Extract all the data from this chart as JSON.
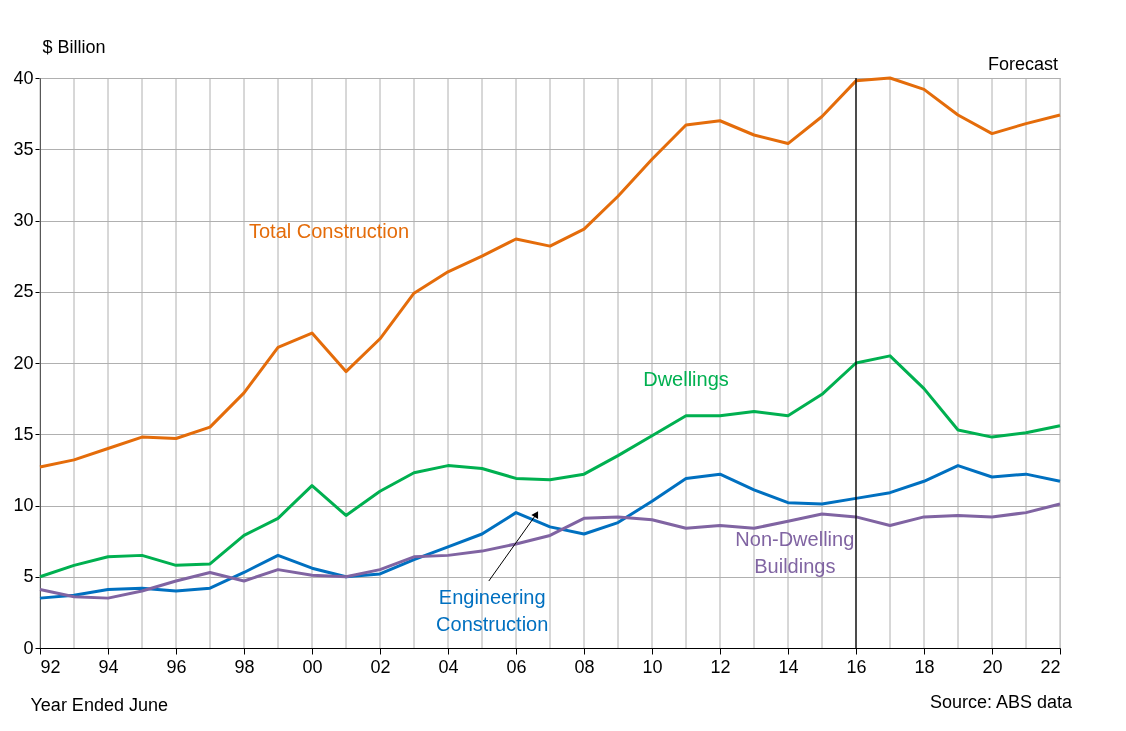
{
  "chart_data": {
    "type": "line",
    "xlabel": "Year Ended June",
    "ylabel": "$ Billion",
    "x": [
      1992,
      1993,
      1994,
      1995,
      1996,
      1997,
      1998,
      1999,
      2000,
      2001,
      2002,
      2003,
      2004,
      2005,
      2006,
      2007,
      2008,
      2009,
      2010,
      2011,
      2012,
      2013,
      2014,
      2015,
      2016,
      2017,
      2018,
      2019,
      2020,
      2021,
      2022
    ],
    "series": [
      {
        "name": "Total Construction",
        "color": "#e46c0a",
        "values": [
          12.7,
          13.2,
          14.0,
          14.8,
          14.7,
          15.5,
          17.9,
          21.1,
          22.1,
          19.4,
          21.7,
          24.9,
          26.4,
          27.5,
          28.7,
          28.2,
          29.4,
          31.7,
          34.3,
          36.7,
          37.0,
          36.0,
          35.4,
          37.3,
          39.8,
          40.0,
          39.2,
          37.4,
          36.1,
          36.8,
          37.4
        ]
      },
      {
        "name": "Dwellings",
        "color": "#00b050",
        "values": [
          5.0,
          5.8,
          6.4,
          6.5,
          5.8,
          5.9,
          7.9,
          9.1,
          11.4,
          9.3,
          11.0,
          12.3,
          12.8,
          12.6,
          11.9,
          11.8,
          12.2,
          13.5,
          14.9,
          16.3,
          16.3,
          16.6,
          16.3,
          17.8,
          20.0,
          20.5,
          18.2,
          15.3,
          14.8,
          15.1,
          15.6
        ]
      },
      {
        "name": "Engineering Construction",
        "color": "#0070c0",
        "values": [
          3.5,
          3.7,
          4.1,
          4.2,
          4.0,
          4.2,
          5.3,
          6.5,
          5.6,
          5.0,
          5.2,
          6.2,
          7.1,
          8.0,
          9.5,
          8.5,
          8.0,
          8.8,
          10.3,
          11.9,
          12.2,
          11.1,
          10.2,
          10.1,
          10.5,
          10.9,
          11.7,
          12.8,
          12.0,
          12.2,
          11.7
        ]
      },
      {
        "name": "Non-Dwelling Buildings",
        "color": "#8064a2",
        "values": [
          4.1,
          3.6,
          3.5,
          4.0,
          4.7,
          5.3,
          4.7,
          5.5,
          5.1,
          5.0,
          5.5,
          6.4,
          6.5,
          6.8,
          7.3,
          7.9,
          9.1,
          9.2,
          9.0,
          8.4,
          8.6,
          8.4,
          8.9,
          9.4,
          9.2,
          8.6,
          9.2,
          9.3,
          9.2,
          9.5,
          10.1
        ]
      }
    ],
    "xlim": [
      1992,
      2022
    ],
    "xticks": [
      {
        "value": 1992,
        "label": "92"
      },
      {
        "value": 1993,
        "label": null
      },
      {
        "value": 1994,
        "label": "94"
      },
      {
        "value": 1995,
        "label": null
      },
      {
        "value": 1996,
        "label": "96"
      },
      {
        "value": 1997,
        "label": null
      },
      {
        "value": 1998,
        "label": "98"
      },
      {
        "value": 1999,
        "label": null
      },
      {
        "value": 2000,
        "label": "00"
      },
      {
        "value": 2001,
        "label": null
      },
      {
        "value": 2002,
        "label": "02"
      },
      {
        "value": 2003,
        "label": null
      },
      {
        "value": 2004,
        "label": "04"
      },
      {
        "value": 2005,
        "label": null
      },
      {
        "value": 2006,
        "label": "06"
      },
      {
        "value": 2007,
        "label": null
      },
      {
        "value": 2008,
        "label": "08"
      },
      {
        "value": 2009,
        "label": null
      },
      {
        "value": 2010,
        "label": "10"
      },
      {
        "value": 2011,
        "label": null
      },
      {
        "value": 2012,
        "label": "12"
      },
      {
        "value": 2013,
        "label": null
      },
      {
        "value": 2014,
        "label": "14"
      },
      {
        "value": 2015,
        "label": null
      },
      {
        "value": 2016,
        "label": "16"
      },
      {
        "value": 2017,
        "label": null
      },
      {
        "value": 2018,
        "label": "18"
      },
      {
        "value": 2019,
        "label": null
      },
      {
        "value": 2020,
        "label": "20"
      },
      {
        "value": 2021,
        "label": null
      },
      {
        "value": 2022,
        "label": "22"
      }
    ],
    "ylim": [
      0,
      40
    ],
    "yticks": [
      0,
      5,
      10,
      15,
      20,
      25,
      30,
      35,
      40
    ],
    "grid": true,
    "marker": "none",
    "line_style": "solid",
    "ref_lines": [
      {
        "axis": "x",
        "value": 2016,
        "label": "Forecast",
        "color": "#000000"
      }
    ],
    "annotations": [
      "Source: ABS data"
    ]
  }
}
